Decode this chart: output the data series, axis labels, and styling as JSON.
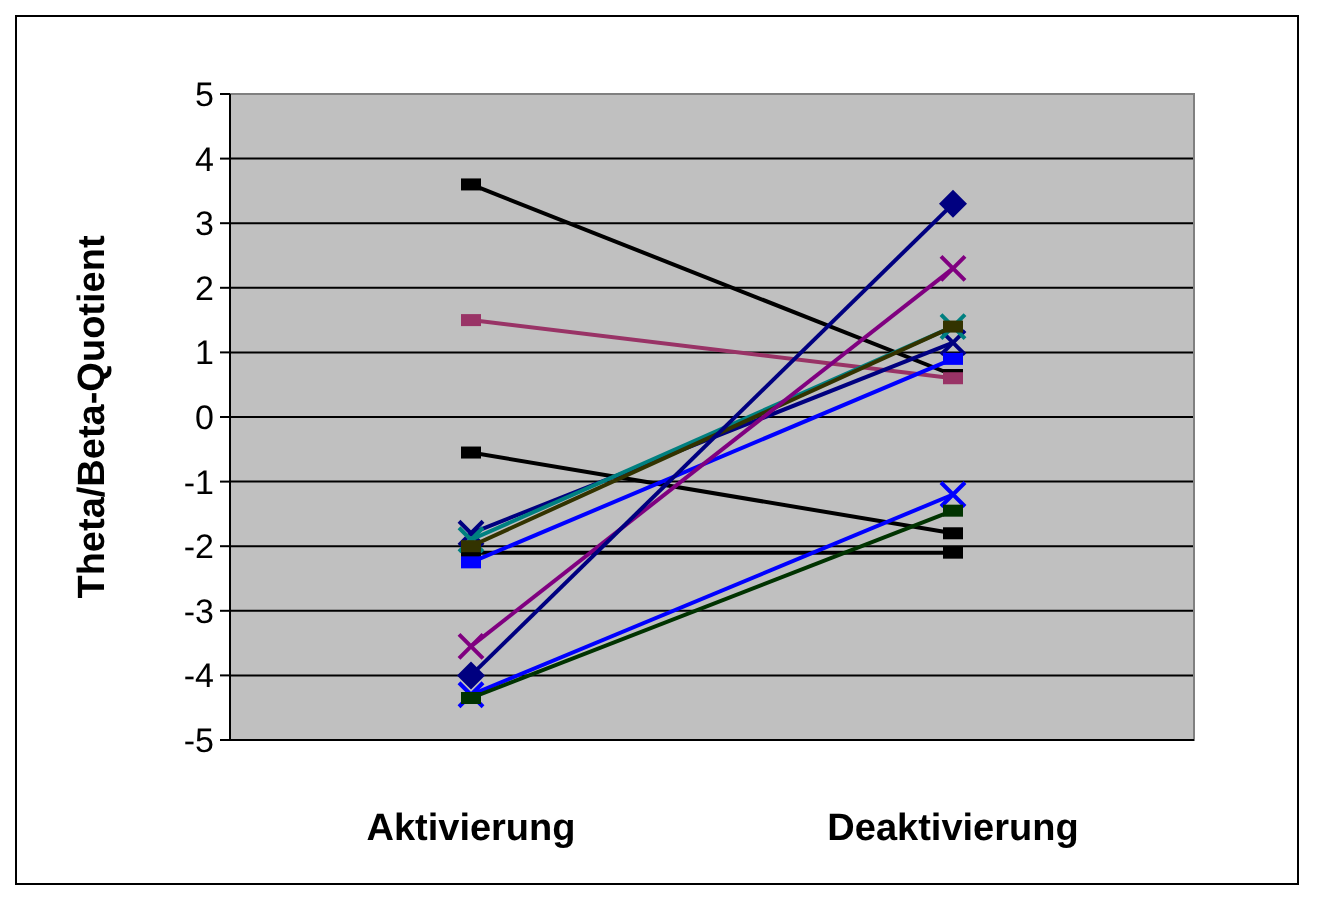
{
  "chart_data": {
    "type": "line",
    "ylabel": "Theta/Beta-Quotient",
    "categories": [
      "Aktivierung",
      "Deaktivierung"
    ],
    "ylim": [
      -5,
      5
    ],
    "yticks": [
      -5,
      -4,
      -3,
      -2,
      -1,
      0,
      1,
      2,
      3,
      4,
      5
    ],
    "grid": "y",
    "series": [
      {
        "color": "#000000",
        "marker": "square",
        "values": [
          3.6,
          0.65
        ]
      },
      {
        "color": "#993366",
        "marker": "square",
        "values": [
          1.5,
          0.6
        ]
      },
      {
        "color": "#000000",
        "marker": "square",
        "values": [
          -0.55,
          -1.8
        ]
      },
      {
        "color": "#000000",
        "marker": "square",
        "values": [
          -2.1,
          -2.1
        ]
      },
      {
        "color": "#000080",
        "marker": "cross",
        "values": [
          -1.8,
          1.15
        ]
      },
      {
        "color": "#008080",
        "marker": "cross",
        "values": [
          -1.9,
          1.4
        ]
      },
      {
        "color": "#333300",
        "marker": "square",
        "values": [
          -2.0,
          1.4
        ]
      },
      {
        "color": "#0000ff",
        "marker": "square",
        "values": [
          -2.25,
          0.9
        ]
      },
      {
        "color": "#800080",
        "marker": "cross",
        "values": [
          -3.55,
          2.3
        ]
      },
      {
        "color": "#000080",
        "marker": "diamond",
        "values": [
          -4.0,
          3.3
        ]
      },
      {
        "color": "#0000ff",
        "marker": "cross",
        "values": [
          -4.3,
          -1.2
        ]
      },
      {
        "color": "#003300",
        "marker": "square",
        "values": [
          -4.35,
          -1.45
        ]
      }
    ]
  }
}
